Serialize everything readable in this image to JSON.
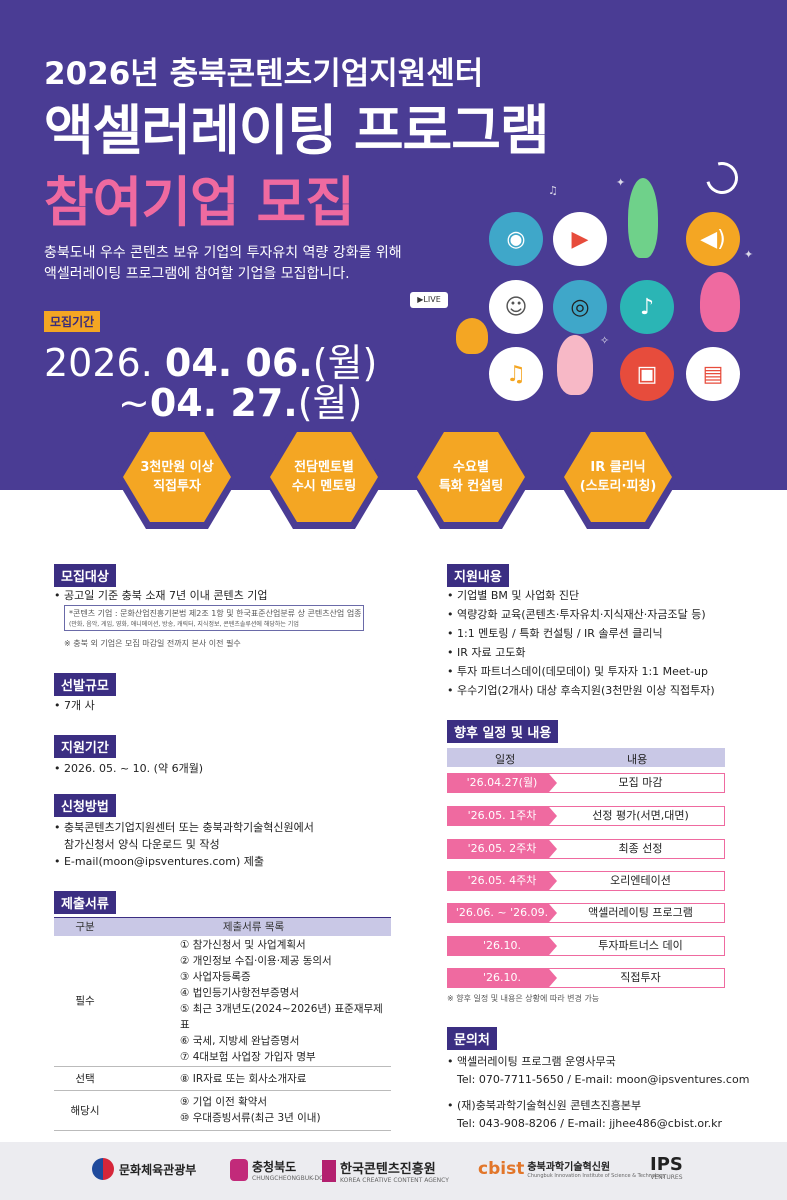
{
  "header": {
    "line1": "2026년 충북콘텐츠기업지원센터",
    "line2": "액셀러레이팅 프로그램",
    "line3": "참여기업 모집",
    "desc1": "충북도내 우수 콘텐츠 보유 기업의 투자유치 역량 강화를 위해",
    "desc2": "액셀러레이팅 프로그램에 참여할 기업을 모집합니다.",
    "period_badge": "모집기간",
    "date1_prefix": "2026. ",
    "date1_main": "04. 06.",
    "date1_suffix": "(월)",
    "date2_prefix": "~",
    "date2_main": "04. 27.",
    "date2_suffix": "(월)",
    "live_label": "LIVE"
  },
  "hexes": [
    {
      "line1": "3천만원 이상",
      "line2": "직접투자"
    },
    {
      "line1": "전담멘토별",
      "line2": "수시 멘토링"
    },
    {
      "line1": "수요별",
      "line2": "특화 컨설팅"
    },
    {
      "line1": "IR 클리닉",
      "line2": "(스토리·피칭)"
    }
  ],
  "left": {
    "target_title": "모집대상",
    "target_item": "• 공고일 기준 충북 소재 7년 이내 콘텐츠 기업",
    "target_box1": "*콘텐츠 기업 : 문화산업진흥기본법 제2조 1항 및 한국표준산업분류 상 콘텐츠산업 업종",
    "target_box2": "(만화, 음악, 게임, 영화, 애니메이션, 방송, 캐릭터, 지식정보, 콘텐츠솔루션에 해당하는 기업",
    "target_note": "※ 충북 외 기업은 모집 마감일 전까지 본사 이전 필수",
    "scale_title": "선발규모",
    "scale_item": "• 7개 사",
    "term_title": "지원기간",
    "term_item": "• 2026. 05. ~ 10. (약 6개월)",
    "apply_title": "신청방법",
    "apply_item1": "• 충북콘텐츠기업지원센터 또는 충북과학기술혁신원에서",
    "apply_item1b": "참가신청서 양식 다운로드 및 작성",
    "apply_item2": "• E-mail(moon@ipsventures.com) 제출",
    "docs_title": "제출서류",
    "docs_head": [
      "구분",
      "제출서류 목록"
    ],
    "docs_groups": [
      {
        "label": "필수",
        "items": [
          "① 참가신청서 및 사업계획서",
          "② 개인정보 수집·이용·제공 동의서",
          "③ 사업자등록증",
          "④ 법인등기사항전부증명서",
          "⑤ 최근 3개년도(2024~2026년) 표준재무제표",
          "⑥ 국세, 지방세 완납증명서",
          "⑦ 4대보험 사업장 가입자 명부"
        ]
      },
      {
        "label": "선택",
        "items": [
          "⑧ IR자료 또는 회사소개자료"
        ]
      },
      {
        "label": "해당시",
        "items": [
          "⑨ 기업 이전 확약서",
          "⑩ 우대증빙서류(최근 3년 이내)"
        ]
      }
    ]
  },
  "right": {
    "support_title": "지원내용",
    "support_items": [
      "• 기업별 BM 및 사업화 진단",
      "• 역량강화 교육(콘텐츠·투자유치·지식재산·자금조달 등)",
      "• 1:1 멘토링 / 특화 컨설팅 / IR 솔루션 클리닉",
      "• IR 자료 고도화",
      "• 투자 파트너스데이(데모데이) 및 투자자 1:1 Meet-up",
      "• 우수기업(2개사) 대상 후속지원(3천만원 이상 직접투자)"
    ],
    "sched_title": "향후 일정 및 내용",
    "sched_head": [
      "일정",
      "내용"
    ],
    "sched_rows": [
      {
        "date": "'26.04.27(월)",
        "content": "모집 마감"
      },
      {
        "date": "'26.05. 1주차",
        "content": "선정 평가(서면,대면)"
      },
      {
        "date": "'26.05. 2주차",
        "content": "최종 선정"
      },
      {
        "date": "'26.05. 4주차",
        "content": "오리엔테이션"
      },
      {
        "date": "'26.06. ~ '26.09.",
        "content": "액셀러레이팅 프로그램"
      },
      {
        "date": "'26.10.",
        "content": "투자파트너스 데이"
      },
      {
        "date": "'26.10.",
        "content": "직접투자"
      }
    ],
    "sched_note": "※ 향후 일정 및 내용은 상황에 따라 변경 가능",
    "contact_title": "문의처",
    "contact1": "• 액셀러레이팅 프로그램 운영사무국",
    "contact1b": "Tel: 070-7711-5650 / E-mail: moon@ipsventures.com",
    "contact2": "• (재)충북과학기술혁신원 콘텐츠진흥본부",
    "contact2b": "Tel: 043-908-8206 / E-mail: jjhee486@cbist.or.kr"
  },
  "footer": {
    "logo1": "문화체육관광부",
    "logo2": "충청북도",
    "logo2_sub": "CHUNGCHEONGBUK-DO",
    "logo3": "한국콘텐츠진흥원",
    "logo3_sub": "KOREA CREATIVE CONTENT AGENCY",
    "logo4_mark": "cbist",
    "logo4": "충북과학기술혁신원",
    "logo4_sub": "Chungbuk Innovation Institute of Science & Technology",
    "logo5": "IPS",
    "logo5_sub": "VENTURES"
  },
  "colors": {
    "primary": "#4a3c94",
    "accent_orange": "#f4a623",
    "accent_pink": "#ef6aa0",
    "section_dark": "#3b2e82"
  }
}
